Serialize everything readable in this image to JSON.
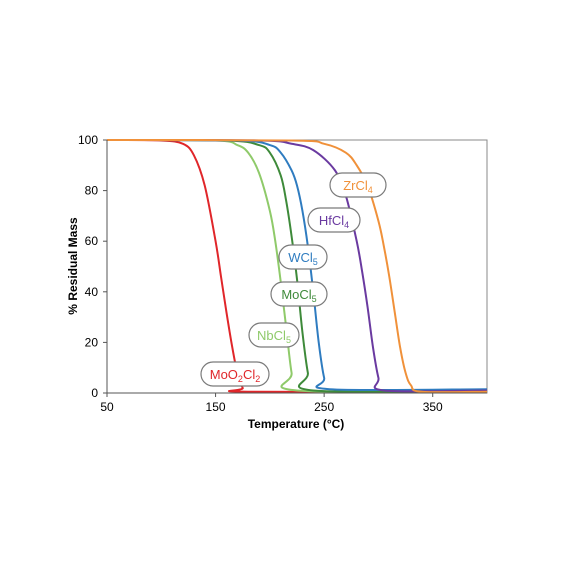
{
  "chart_data": {
    "type": "line",
    "xlabel": "Temperature (°C)",
    "ylabel": "% Residual Mass",
    "xlim": [
      50,
      400
    ],
    "ylim": [
      0,
      100
    ],
    "xticks": [
      50,
      150,
      250,
      350
    ],
    "yticks": [
      0,
      20,
      40,
      60,
      80,
      100
    ],
    "grid": false,
    "series": [
      {
        "name": "MoO2Cl2",
        "label_main": "MoO",
        "label_sub1": "2",
        "label_mid": "Cl",
        "label_sub2": "2",
        "color": "#e0262a",
        "x": [
          50,
          100,
          120,
          130,
          140,
          150,
          155,
          160,
          165,
          170,
          175,
          180,
          400
        ],
        "y": [
          100,
          99.8,
          98.5,
          94,
          82,
          60,
          46,
          32,
          19,
          8,
          2,
          0.5,
          0.5
        ]
      },
      {
        "name": "NbCl5",
        "label_main": "NbCl",
        "label_sub1": "5",
        "label_mid": "",
        "label_sub2": "",
        "color": "#8fca6a",
        "x": [
          50,
          150,
          170,
          180,
          190,
          200,
          205,
          210,
          215,
          220,
          225,
          400
        ],
        "y": [
          100,
          99.8,
          98,
          95,
          87,
          72,
          60,
          44,
          26,
          8,
          1,
          1
        ]
      },
      {
        "name": "MoCl5",
        "label_main": "MoCl",
        "label_sub1": "5",
        "label_mid": "",
        "label_sub2": "",
        "color": "#3e8a3a",
        "x": [
          50,
          160,
          190,
          200,
          210,
          215,
          220,
          225,
          230,
          235,
          240,
          400
        ],
        "y": [
          100,
          99.8,
          98,
          95,
          86,
          76,
          62,
          45,
          24,
          8,
          1,
          1
        ]
      },
      {
        "name": "WCl5",
        "label_main": "WCl",
        "label_sub1": "5",
        "label_mid": "",
        "label_sub2": "",
        "color": "#2f7cc0",
        "x": [
          50,
          170,
          200,
          210,
          220,
          225,
          230,
          235,
          240,
          245,
          250,
          255,
          400
        ],
        "y": [
          100,
          99.8,
          98,
          95,
          88,
          82,
          72,
          58,
          40,
          20,
          6,
          1.5,
          1.5
        ]
      },
      {
        "name": "HfCl4",
        "label_main": "HfCl",
        "label_sub1": "4",
        "label_mid": "",
        "label_sub2": "",
        "color": "#6a3aa0",
        "x": [
          50,
          190,
          220,
          240,
          260,
          270,
          280,
          285,
          290,
          295,
          300,
          305,
          400
        ],
        "y": [
          100,
          99.8,
          98.5,
          96,
          88,
          78,
          60,
          48,
          34,
          18,
          6,
          1,
          1
        ]
      },
      {
        "name": "ZrCl4",
        "label_main": "ZrCl",
        "label_sub1": "4",
        "label_mid": "",
        "label_sub2": "",
        "color": "#f0913a",
        "x": [
          50,
          220,
          250,
          270,
          280,
          290,
          300,
          305,
          310,
          315,
          320,
          325,
          330,
          340,
          400
        ],
        "y": [
          100,
          99.8,
          98.5,
          95,
          90,
          82,
          68,
          58,
          46,
          32,
          18,
          8,
          3,
          0.5,
          0.5
        ]
      }
    ],
    "labels": [
      "ZrCl4",
      "HfCl4",
      "WCl5",
      "MoCl5",
      "NbCl5",
      "MoO2Cl2"
    ]
  }
}
